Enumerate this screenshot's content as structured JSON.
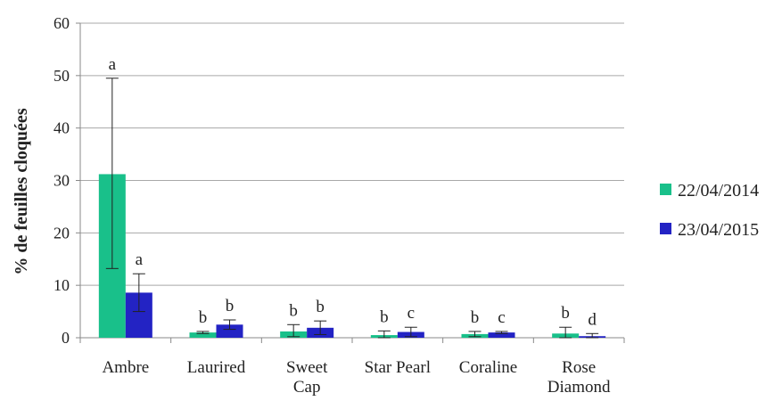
{
  "chart_data": {
    "type": "bar",
    "ylabel": "% de feuilles cloquées",
    "xlabel": "",
    "title": "",
    "ylim": [
      0,
      60
    ],
    "yticks": [
      0,
      10,
      20,
      30,
      40,
      50,
      60
    ],
    "grid": true,
    "legend_position": "right",
    "categories": [
      [
        "Ambre"
      ],
      [
        "Laurired"
      ],
      [
        "Sweet",
        "Cap"
      ],
      [
        "Star Pearl"
      ],
      [
        "Coraline"
      ],
      [
        "Rose",
        "Diamond"
      ]
    ],
    "series": [
      {
        "name": "22/04/2014",
        "color": "#19c08a",
        "values": [
          31.2,
          1.0,
          1.2,
          0.5,
          0.7,
          0.8
        ],
        "err_upper": [
          49.5,
          1.2,
          2.5,
          1.3,
          1.2,
          2.0
        ],
        "err_lower": [
          13.2,
          0.8,
          0.2,
          0.0,
          0.2,
          0.0
        ],
        "letters": [
          "a",
          "b",
          "b",
          "b",
          "b",
          "b"
        ]
      },
      {
        "name": "23/04/2015",
        "color": "#2323c4",
        "values": [
          8.6,
          2.5,
          1.9,
          1.1,
          1.0,
          0.3
        ],
        "err_upper": [
          12.2,
          3.4,
          3.2,
          2.0,
          1.2,
          0.8
        ],
        "err_lower": [
          5.0,
          1.6,
          0.6,
          0.2,
          0.8,
          0.0
        ],
        "letters": [
          "a",
          "b",
          "b",
          "c",
          "c",
          "d"
        ]
      }
    ]
  }
}
